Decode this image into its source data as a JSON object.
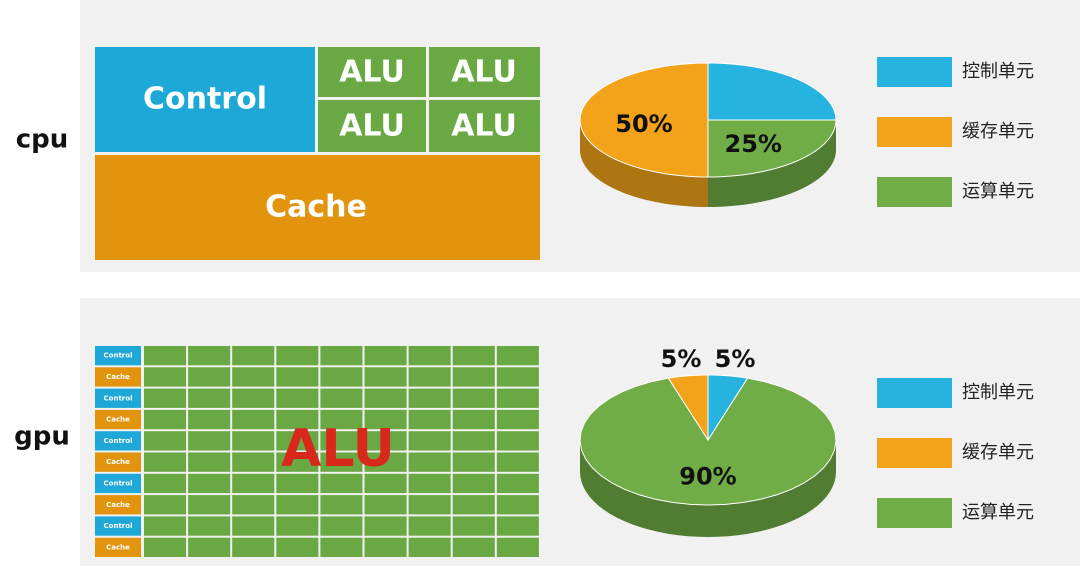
{
  "cpu": {
    "label": "cpu",
    "control": "Control",
    "alu": [
      "ALU",
      "ALU",
      "ALU",
      "ALU"
    ],
    "cache": "Cache"
  },
  "gpu": {
    "label": "gpu",
    "rows": [
      "Control",
      "Cache",
      "Control",
      "Cache",
      "Control",
      "Cache",
      "Control",
      "Cache",
      "Control",
      "Cache"
    ],
    "alu": "ALU"
  },
  "chart_data": [
    {
      "type": "pie",
      "categories": [
        "控制单元",
        "缓存单元",
        "运算单元"
      ],
      "values": [
        25,
        50,
        25
      ],
      "value_labels": [
        null,
        "50%",
        "25%"
      ],
      "colors": [
        "#27b3e0",
        "#f2a31a",
        "#70ad47"
      ],
      "legend": "right"
    },
    {
      "type": "pie",
      "categories": [
        "控制单元",
        "缓存单元",
        "运算单元"
      ],
      "values": [
        5,
        5,
        90
      ],
      "value_labels": [
        "5%",
        "5%",
        "90%"
      ],
      "colors": [
        "#27b3e0",
        "#f2a31a",
        "#70ad47"
      ],
      "legend": "right"
    }
  ]
}
